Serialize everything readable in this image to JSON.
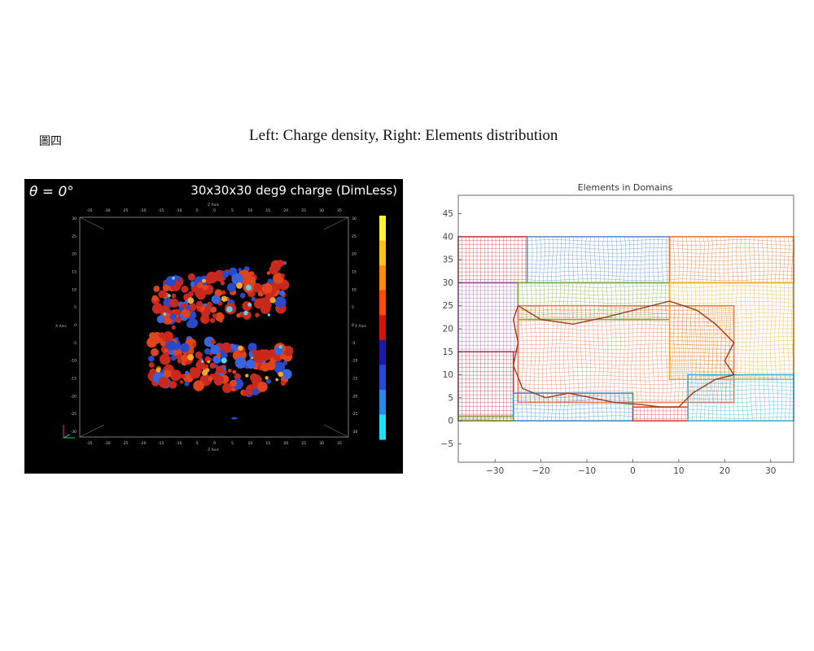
{
  "figure": {
    "label": "圖四",
    "caption": "Left: Charge density,   Right: Elements distribution"
  },
  "left_plot": {
    "theta_label": "θ = 0°",
    "title": "30x30x30 deg9 charge (DimLess)",
    "axis_name_top": "Z Axis",
    "axis_name_bottom": "Z Axis",
    "axis_name_left": "X Axis",
    "axis_name_right": "X Axis",
    "ticks_horizontal": [
      "-35",
      "-30",
      "-25",
      "-20",
      "-15",
      "-10",
      "-5",
      "0",
      "5",
      "10",
      "15",
      "20",
      "25",
      "30",
      "35"
    ],
    "ticks_vertical": [
      "30",
      "25",
      "20",
      "15",
      "10",
      "5",
      "0",
      "-5",
      "-10",
      "-15",
      "-20",
      "-25",
      "-30"
    ],
    "colorbar": [
      "#fff23a",
      "#ffc21a",
      "#ff8a10",
      "#ff4a08",
      "#d21506",
      "#1a1aa8",
      "#2848d8",
      "#2a88ea",
      "#1ee0f4"
    ],
    "colors": {
      "background": "#000000",
      "positive": "#cc2b1d",
      "negative": "#2747c9"
    }
  },
  "chart_data": {
    "type": "mesh",
    "title": "Elements in Domains",
    "xlim": [
      -38,
      35
    ],
    "ylim": [
      -9,
      49
    ],
    "xticks": [
      -30,
      -20,
      -10,
      0,
      10,
      20,
      30
    ],
    "yticks": [
      -5,
      0,
      5,
      10,
      15,
      20,
      25,
      30,
      35,
      40,
      45
    ],
    "domains": [
      {
        "color": "#c4413b",
        "x": [
          -38,
          -23
        ],
        "y": [
          30,
          40
        ]
      },
      {
        "color": "#5a8fd4",
        "x": [
          -23,
          8
        ],
        "y": [
          30,
          40
        ]
      },
      {
        "color": "#e07a3a",
        "x": [
          8,
          35
        ],
        "y": [
          30,
          40
        ]
      },
      {
        "color": "#a055b0",
        "x": [
          -38,
          -25
        ],
        "y": [
          15,
          30
        ]
      },
      {
        "color": "#7bb13c",
        "x": [
          -25,
          8
        ],
        "y": [
          22,
          30
        ]
      },
      {
        "color": "#f0b030",
        "x": [
          8,
          35
        ],
        "y": [
          9,
          30
        ]
      },
      {
        "color": "#b23a4a",
        "x": [
          -38,
          -26
        ],
        "y": [
          0,
          15
        ]
      },
      {
        "color": "#ef7b55",
        "x": [
          -25,
          22
        ],
        "y": [
          4,
          25
        ]
      },
      {
        "color": "#3c8fd0",
        "x": [
          -26,
          0
        ],
        "y": [
          0,
          6
        ]
      },
      {
        "color": "#d84535",
        "x": [
          0,
          12
        ],
        "y": [
          0,
          3
        ]
      },
      {
        "color": "#38b3d8",
        "x": [
          12,
          35
        ],
        "y": [
          0,
          10
        ]
      },
      {
        "color": "#7a9a3a",
        "x": [
          -38,
          -26
        ],
        "y": [
          0,
          1
        ]
      }
    ]
  }
}
